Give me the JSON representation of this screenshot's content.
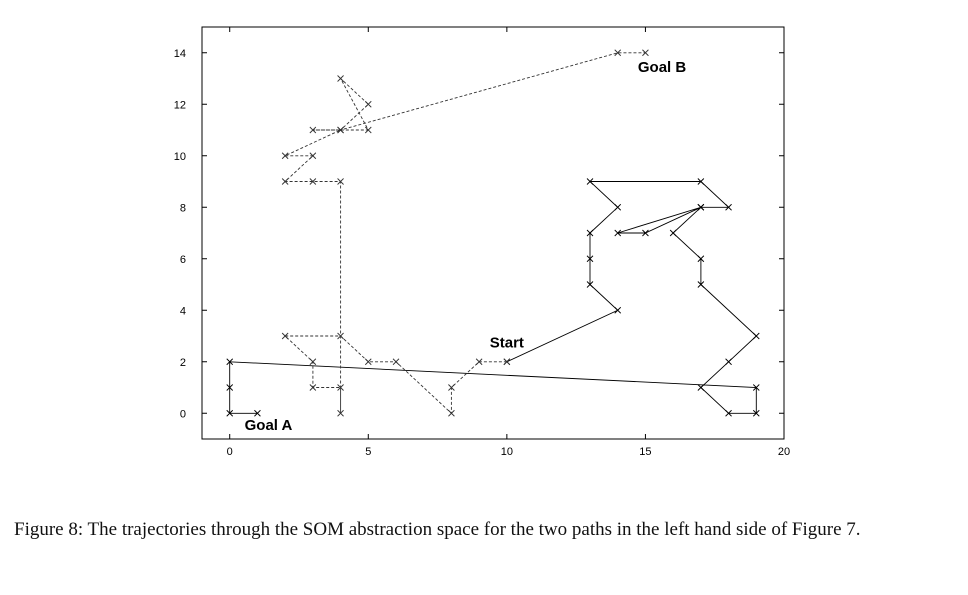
{
  "chart_data": {
    "type": "line",
    "title": "",
    "xlabel": "",
    "ylabel": "",
    "xlim": [
      -1,
      20
    ],
    "ylim": [
      -1,
      15
    ],
    "xticks": [
      0,
      5,
      10,
      15,
      20
    ],
    "yticks": [
      0,
      2,
      4,
      6,
      8,
      10,
      12,
      14
    ],
    "grid": false,
    "series": [
      {
        "style": "solid",
        "color": "#000000",
        "points": [
          [
            10,
            2
          ],
          [
            14,
            4
          ],
          [
            13,
            5
          ],
          [
            13,
            6
          ],
          [
            13,
            7
          ],
          [
            14,
            8
          ],
          [
            13,
            9
          ],
          [
            17,
            9
          ],
          [
            18,
            8
          ],
          [
            17,
            8
          ],
          [
            14,
            7
          ],
          [
            15,
            7
          ],
          [
            17,
            8
          ],
          [
            16,
            7
          ],
          [
            17,
            6
          ],
          [
            17,
            5
          ],
          [
            19,
            3
          ],
          [
            18,
            2
          ],
          [
            17,
            1
          ],
          [
            18,
            0
          ],
          [
            19,
            0
          ],
          [
            19,
            1
          ],
          [
            0,
            2
          ],
          [
            0,
            1
          ],
          [
            0,
            0
          ],
          [
            1,
            0
          ]
        ]
      },
      {
        "style": "dashed",
        "color": "#333333",
        "points": [
          [
            10,
            2
          ],
          [
            9,
            2
          ],
          [
            8,
            1
          ],
          [
            8,
            0
          ],
          [
            6,
            2
          ],
          [
            5,
            2
          ],
          [
            4,
            3
          ],
          [
            2,
            3
          ],
          [
            3,
            2
          ],
          [
            3,
            1
          ],
          [
            4,
            1
          ],
          [
            4,
            0
          ],
          [
            4,
            9
          ],
          [
            3,
            9
          ],
          [
            2,
            9
          ],
          [
            3,
            10
          ],
          [
            2,
            10
          ],
          [
            4,
            11
          ],
          [
            3,
            11
          ],
          [
            5,
            11
          ],
          [
            4,
            13
          ],
          [
            5,
            12
          ],
          [
            4,
            11
          ],
          [
            14,
            14
          ],
          [
            15,
            14
          ]
        ]
      }
    ],
    "annotations": [
      {
        "text": "Start",
        "x": 10,
        "y": 2.75
      },
      {
        "text": "Goal A",
        "x": 1.4,
        "y": -0.45
      },
      {
        "text": "Goal B",
        "x": 15.6,
        "y": 13.45
      }
    ]
  },
  "caption": "Figure 8: The trajectories through the SOM abstraction space for the two paths in the left hand side of Figure 7."
}
